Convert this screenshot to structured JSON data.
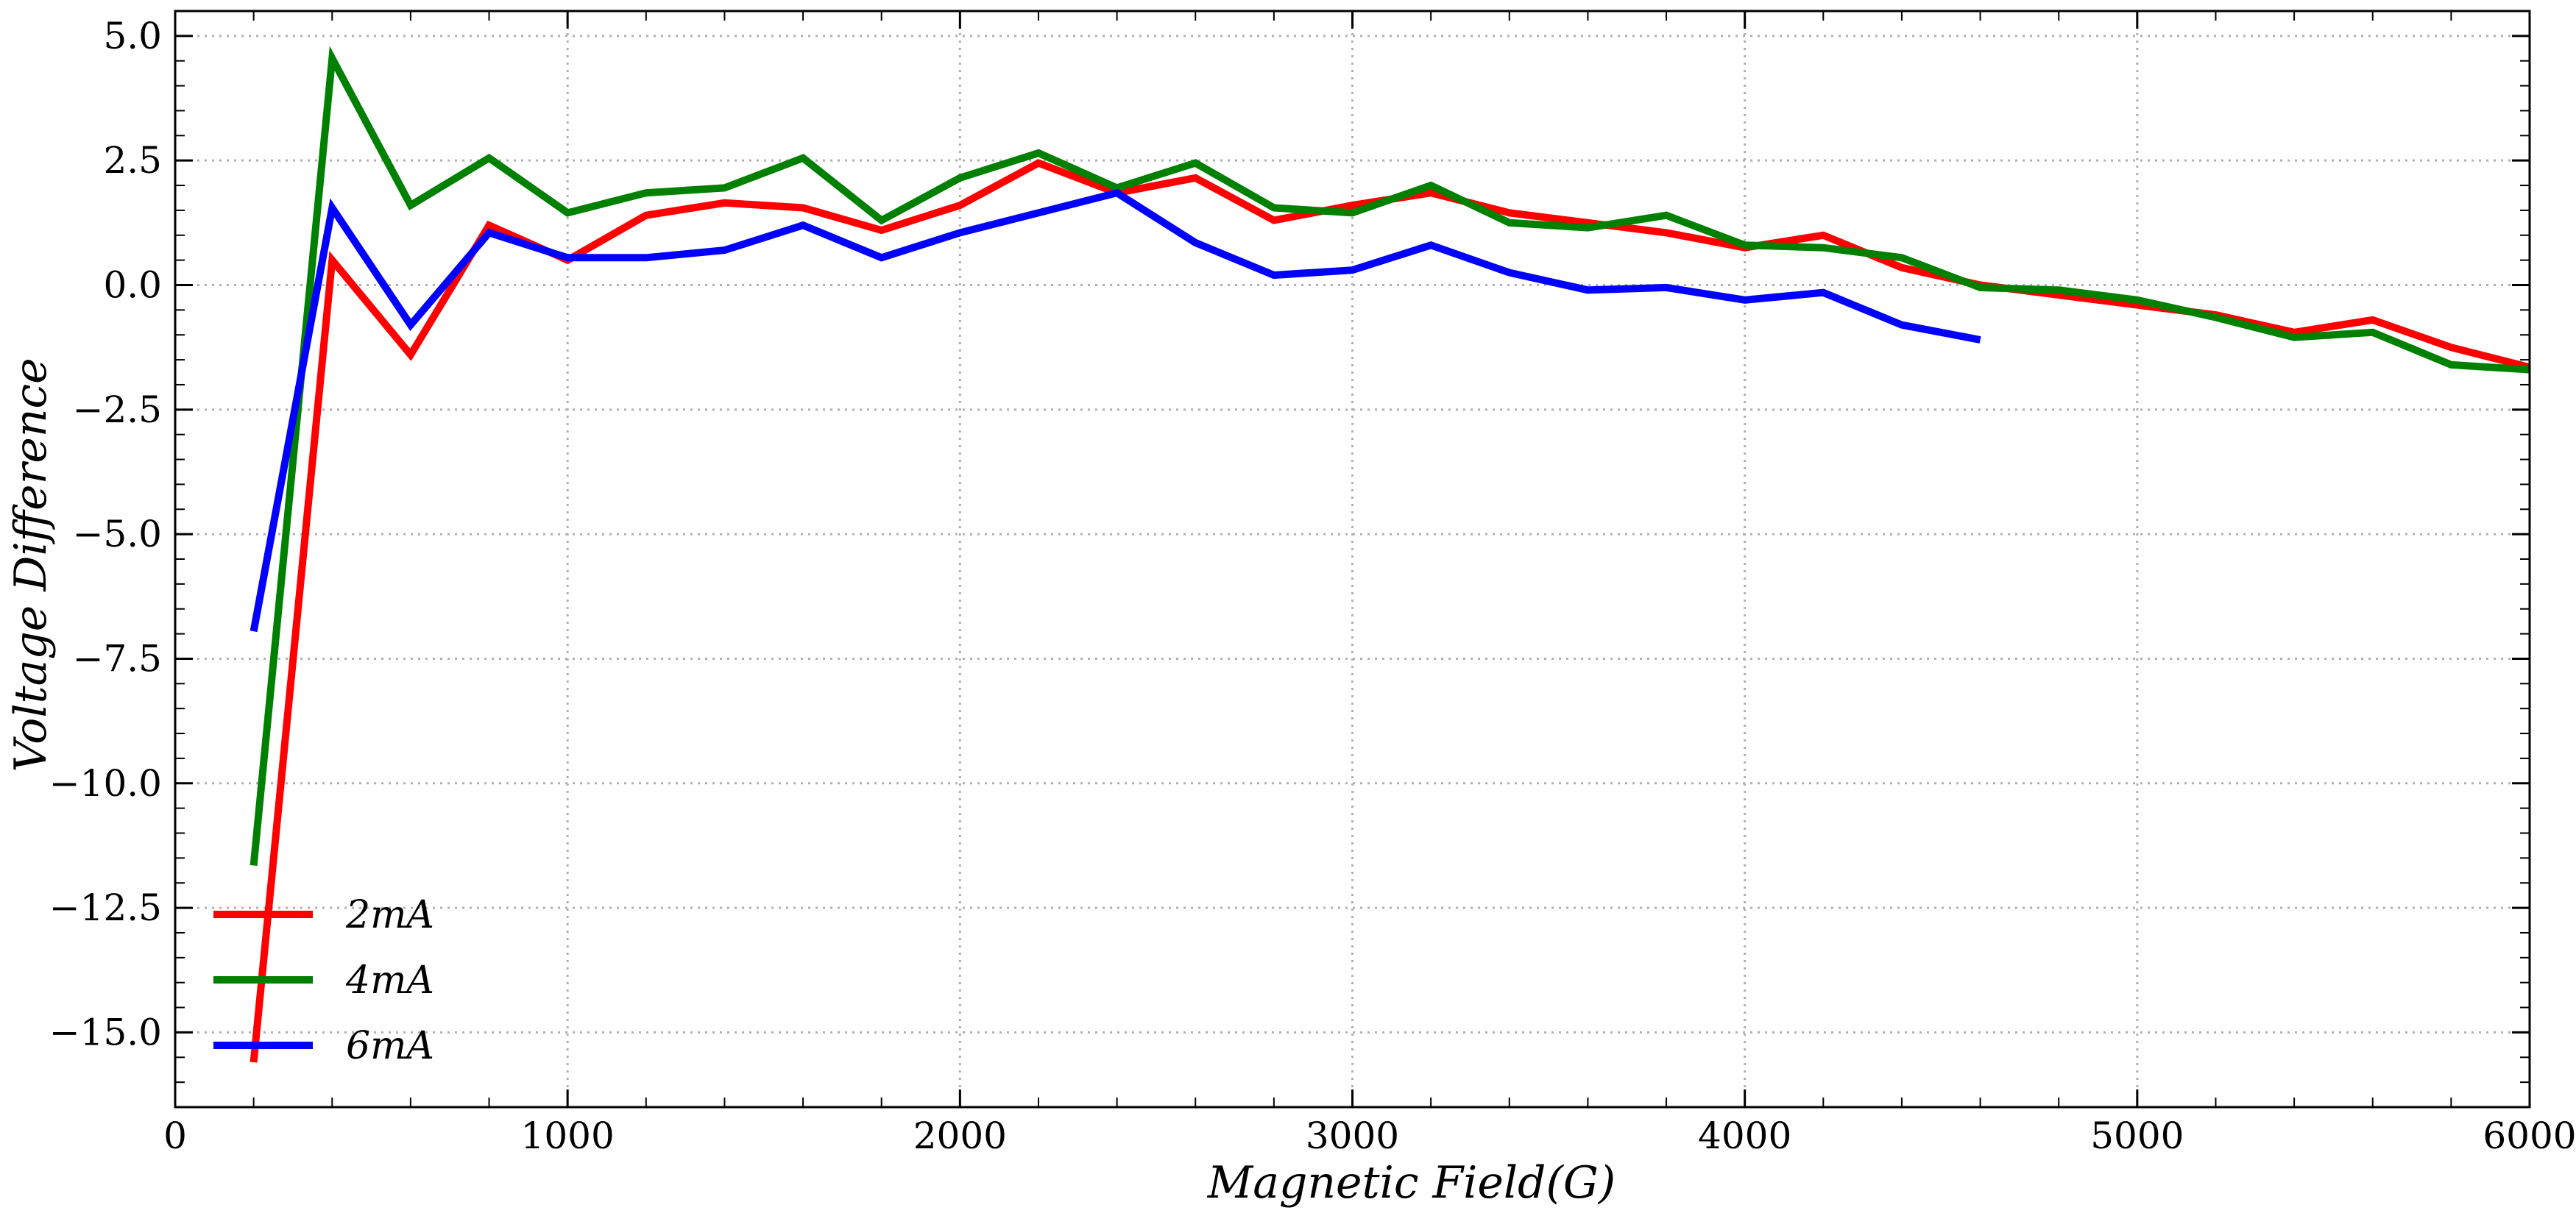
{
  "chart_data": {
    "type": "line",
    "title": "",
    "xlabel": "Magnetic Field(G)",
    "ylabel": "Voltage Difference",
    "xlim": [
      0,
      6000
    ],
    "ylim": [
      -16.5,
      5.5
    ],
    "xticks": [
      0,
      1000,
      2000,
      3000,
      4000,
      5000,
      6000
    ],
    "xtick_labels": [
      "0",
      "1000",
      "2000",
      "3000",
      "4000",
      "5000",
      "6000"
    ],
    "yticks": [
      5.0,
      2.5,
      0.0,
      -2.5,
      -5.0,
      -7.5,
      -10.0,
      -12.5,
      -15.0
    ],
    "ytick_labels": [
      "5.0",
      "2.5",
      "0.0",
      "−2.5",
      "−5.0",
      "−7.5",
      "−10.0",
      "−12.5",
      "−15.0"
    ],
    "grid": true,
    "legend_position": "bottom-left",
    "series": [
      {
        "name": "2mA",
        "color": "#ff0000",
        "x": [
          200,
          400,
          600,
          800,
          1000,
          1200,
          1400,
          1600,
          1800,
          2000,
          2200,
          2400,
          2600,
          2800,
          3000,
          3200,
          3400,
          3600,
          3800,
          4000,
          4200,
          4400,
          4600,
          4800,
          5000,
          5200,
          5400,
          5600,
          5800,
          6000
        ],
        "y": [
          -15.6,
          0.5,
          -1.4,
          1.2,
          0.5,
          1.4,
          1.65,
          1.55,
          1.1,
          1.6,
          2.45,
          1.85,
          2.15,
          1.3,
          1.6,
          1.85,
          1.45,
          1.25,
          1.05,
          0.75,
          1.0,
          0.35,
          0.0,
          -0.2,
          -0.4,
          -0.6,
          -0.95,
          -0.7,
          -1.25,
          -1.65
        ]
      },
      {
        "name": "4mA",
        "color": "#008000",
        "x": [
          200,
          400,
          600,
          800,
          1000,
          1200,
          1400,
          1600,
          1800,
          2000,
          2200,
          2400,
          2600,
          2800,
          3000,
          3200,
          3400,
          3600,
          3800,
          4000,
          4200,
          4400,
          4600,
          4800,
          5000,
          5200,
          5400,
          5600,
          5800,
          6000
        ],
        "y": [
          -11.65,
          4.55,
          1.6,
          2.55,
          1.45,
          1.85,
          1.95,
          2.55,
          1.3,
          2.15,
          2.65,
          1.95,
          2.45,
          1.55,
          1.45,
          2.0,
          1.25,
          1.15,
          1.4,
          0.8,
          0.75,
          0.55,
          -0.05,
          -0.1,
          -0.3,
          -0.65,
          -1.05,
          -0.95,
          -1.6,
          -1.7
        ]
      },
      {
        "name": "6mA",
        "color": "#0000ff",
        "x": [
          200,
          400,
          600,
          800,
          1000,
          1200,
          1400,
          1600,
          1800,
          2000,
          2200,
          2400,
          2600,
          2800,
          3000,
          3200,
          3400,
          3600,
          3800,
          4000,
          4200,
          4400,
          4600
        ],
        "y": [
          -6.95,
          1.55,
          -0.8,
          1.05,
          0.55,
          0.55,
          0.7,
          1.2,
          0.55,
          1.05,
          1.45,
          1.85,
          0.85,
          0.2,
          0.3,
          0.8,
          0.25,
          -0.1,
          -0.05,
          -0.3,
          -0.15,
          -0.8,
          -1.1
        ]
      }
    ]
  }
}
